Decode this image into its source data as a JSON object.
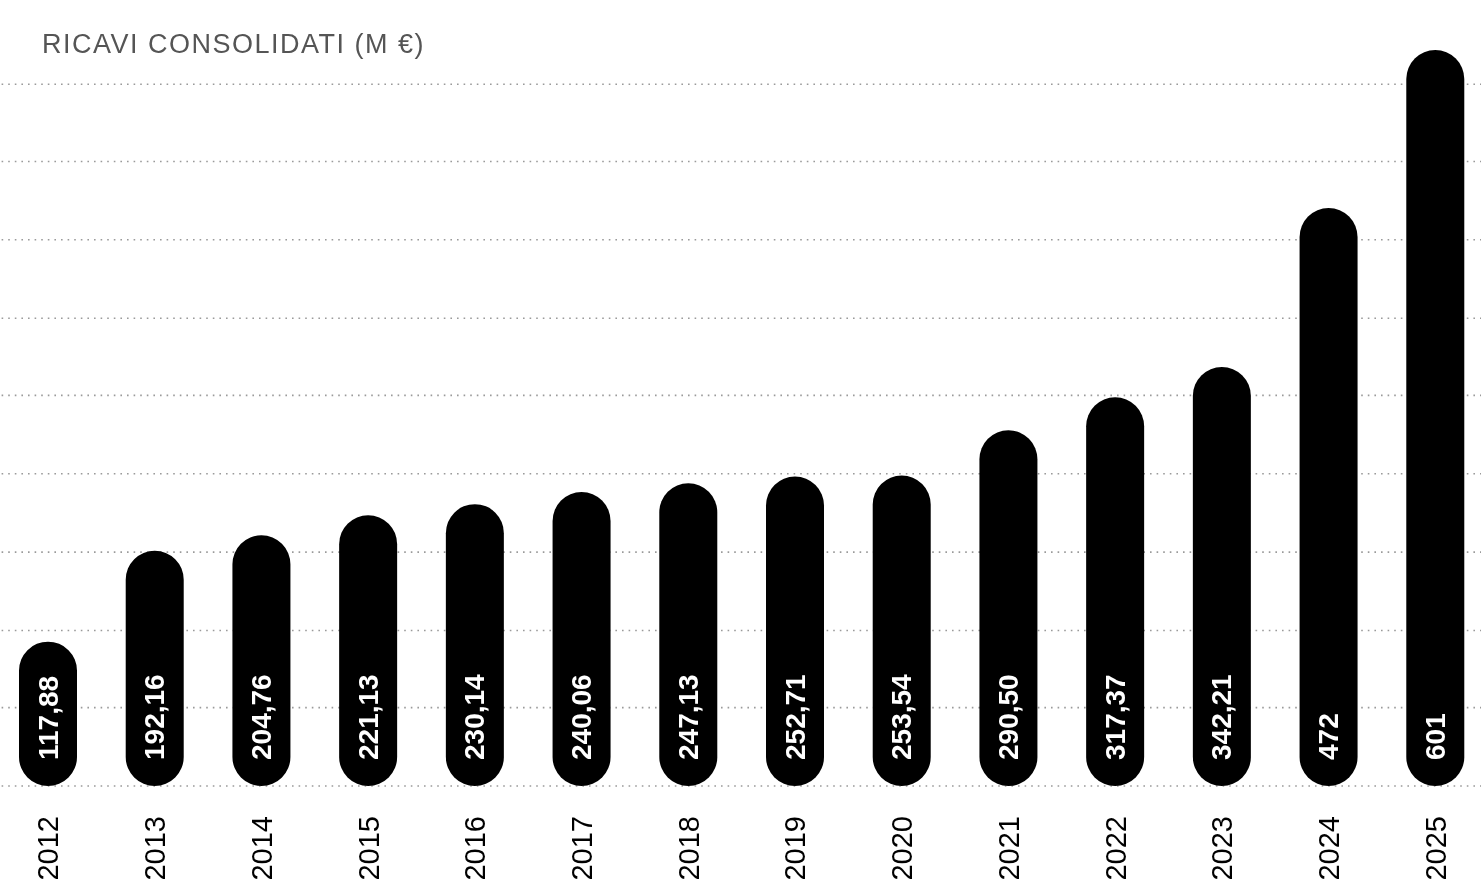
{
  "chart_data": {
    "type": "bar",
    "title": "RICAVI CONSOLIDATI (M €)",
    "categories": [
      "2012",
      "2013",
      "2014",
      "2015",
      "2016",
      "2017",
      "2018",
      "2019",
      "2020",
      "2021",
      "2022",
      "2023",
      "2024",
      "2025"
    ],
    "values": [
      117.88,
      192.16,
      204.76,
      221.13,
      230.14,
      240.06,
      247.13,
      252.71,
      253.54,
      290.5,
      317.37,
      342.21,
      472,
      601
    ],
    "value_labels": [
      "117,88",
      "192,16",
      "204,76",
      "221,13",
      "230,14",
      "240,06",
      "247,13",
      "252,71",
      "253,54",
      "290,50",
      "317,37",
      "342,21",
      "472",
      "601"
    ],
    "color": "#000000",
    "ylim": [
      0,
      601
    ],
    "yticks": [
      {
        "value": 0,
        "label": null
      },
      {
        "value": 64,
        "label": null
      },
      {
        "value": 127,
        "label": null
      },
      {
        "value": 191,
        "label": null
      },
      {
        "value": 255,
        "label": null
      },
      {
        "value": 319,
        "label": null
      },
      {
        "value": 382,
        "label": null
      },
      {
        "value": 446,
        "label": null
      },
      {
        "value": 510,
        "label": null
      },
      {
        "value": 573,
        "label": null
      }
    ],
    "grid": "y",
    "tick_labels": "x"
  }
}
